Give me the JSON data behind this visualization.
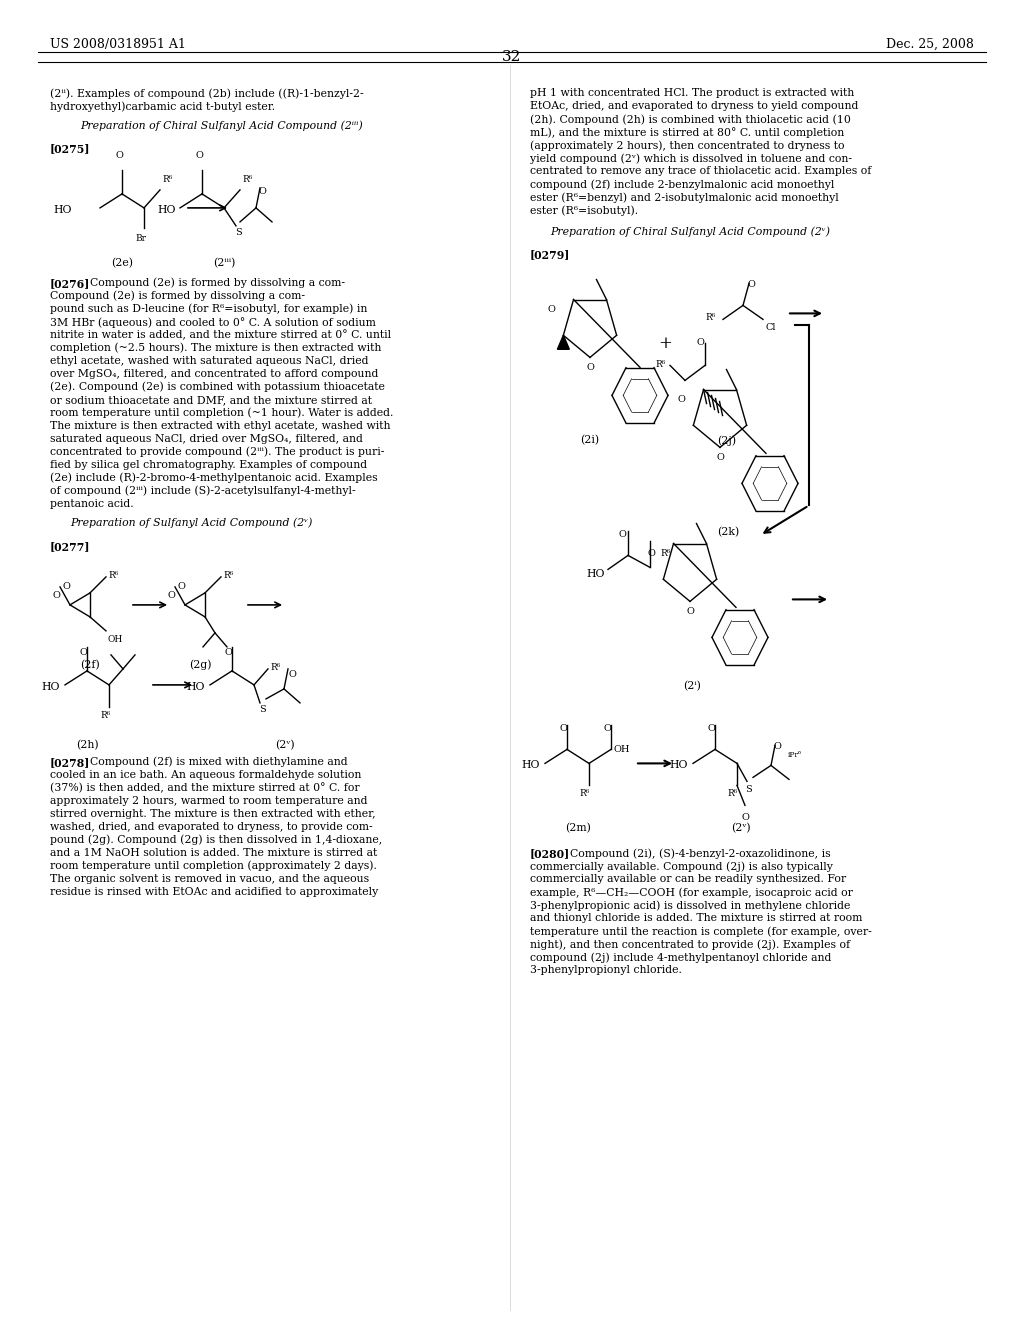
{
  "patent_number": "US 2008/0318951 A1",
  "patent_date": "Dec. 25, 2008",
  "page": "32",
  "bg": "#ffffff",
  "fg": "#000000",
  "body_size": 7.8,
  "header_size": 9.0
}
